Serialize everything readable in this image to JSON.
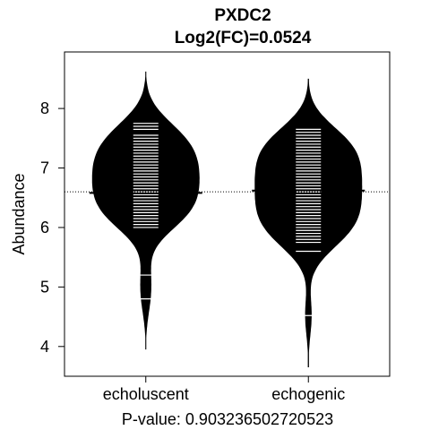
{
  "chart_data": {
    "type": "beanplot",
    "title": "PXDC2",
    "subtitle": "Log2(FC)=0.0524",
    "xlabel": "",
    "ylabel": "Abundance",
    "footer": "P-value: 0.903236502720523",
    "ylim": [
      3.5,
      8.95
    ],
    "yticks": [
      4,
      5,
      6,
      7,
      8
    ],
    "categories": [
      "echoluscent",
      "echogenic"
    ],
    "overall_mean": 6.6,
    "groups": [
      {
        "label": "echoluscent",
        "mean": 6.58,
        "range": [
          3.95,
          8.62
        ],
        "observations": [
          7.75,
          7.7,
          7.65,
          7.55,
          7.5,
          7.45,
          7.4,
          7.35,
          7.3,
          7.25,
          7.2,
          7.15,
          7.1,
          7.05,
          7.0,
          6.95,
          6.9,
          6.85,
          6.8,
          6.75,
          6.7,
          6.65,
          6.6,
          6.55,
          6.5,
          6.45,
          6.4,
          6.35,
          6.3,
          6.25,
          6.2,
          6.15,
          6.1,
          6.05,
          6.0,
          5.2,
          4.8
        ]
      },
      {
        "label": "echogenic",
        "mean": 6.62,
        "range": [
          3.65,
          8.5
        ],
        "observations": [
          7.65,
          7.6,
          7.55,
          7.5,
          7.45,
          7.4,
          7.35,
          7.3,
          7.25,
          7.2,
          7.15,
          7.1,
          7.05,
          7.0,
          6.95,
          6.9,
          6.85,
          6.8,
          6.75,
          6.7,
          6.65,
          6.6,
          6.55,
          6.5,
          6.45,
          6.4,
          6.35,
          6.3,
          6.25,
          6.2,
          6.15,
          6.1,
          6.05,
          6.0,
          5.95,
          5.9,
          5.85,
          5.8,
          5.75,
          5.6,
          4.52
        ]
      }
    ],
    "colors": {
      "bean": "#000000",
      "line": "#ffffff",
      "frame": "#000000"
    },
    "grid": false,
    "legend": "none"
  }
}
